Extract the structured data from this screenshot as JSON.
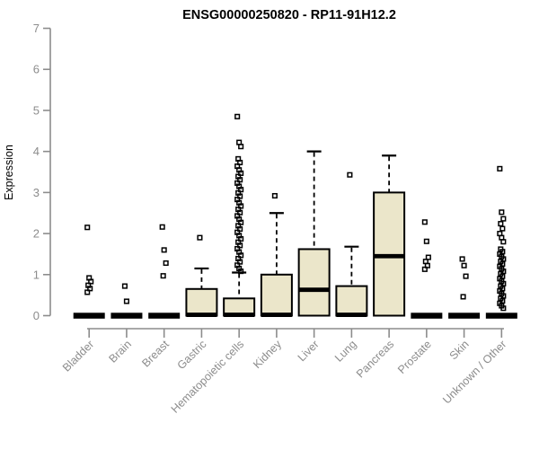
{
  "chart_data": {
    "type": "boxplot",
    "title": "ENSG00000250820 - RP11-91H12.2",
    "ylabel": "Expression",
    "xlabel": "",
    "ylim": [
      0,
      7
    ],
    "yticks": [
      0,
      1,
      2,
      3,
      4,
      5,
      6,
      7
    ],
    "grid": false,
    "legend": false,
    "colors": {
      "box_fill": "#EBE6CA",
      "box_stroke": "#000000",
      "median": "#000000",
      "whisker": "#000000",
      "outlier": "#000000",
      "axis": "#8C8C8C",
      "text": "#8C8C8C",
      "title": "#000000",
      "background": "#FFFFFF"
    },
    "categories": [
      "Bladder",
      "Brain",
      "Breast",
      "Gastric",
      "Hematopoietic cells",
      "Kidney",
      "Liver",
      "Lung",
      "Pancreas",
      "Prostate",
      "Skin",
      "Unknown / Other"
    ],
    "series": [
      {
        "name": "Bladder",
        "q1": 0,
        "median": 0,
        "q3": 0,
        "whisker_low": 0,
        "whisker_high": 0,
        "outliers": [
          2.15,
          0.92,
          0.83,
          0.74,
          0.66,
          0.57
        ]
      },
      {
        "name": "Brain",
        "q1": 0,
        "median": 0,
        "q3": 0,
        "whisker_low": 0,
        "whisker_high": 0,
        "outliers": [
          0.72,
          0.35
        ]
      },
      {
        "name": "Breast",
        "q1": 0,
        "median": 0,
        "q3": 0,
        "whisker_low": 0,
        "whisker_high": 0,
        "outliers": [
          2.16,
          1.6,
          1.28,
          0.97
        ]
      },
      {
        "name": "Gastric",
        "q1": 0,
        "median": 0.02,
        "q3": 0.65,
        "whisker_low": 0,
        "whisker_high": 1.15,
        "outliers": [
          1.9
        ]
      },
      {
        "name": "Hematopoietic cells",
        "q1": 0,
        "median": 0.02,
        "q3": 0.42,
        "whisker_low": 0,
        "whisker_high": 1.05,
        "outliers": [
          4.85,
          4.22,
          4.12,
          3.82,
          3.73,
          3.64,
          3.55,
          3.47,
          3.39,
          3.31,
          3.23,
          3.15,
          3.07,
          2.99,
          2.91,
          2.83,
          2.75,
          2.67,
          2.59,
          2.51,
          2.43,
          2.35,
          2.27,
          2.19,
          2.11,
          2.03,
          1.95,
          1.87,
          1.79,
          1.71,
          1.63,
          1.55,
          1.47,
          1.39,
          1.31,
          1.23,
          1.15,
          1.08
        ]
      },
      {
        "name": "Kidney",
        "q1": 0,
        "median": 0.02,
        "q3": 1.0,
        "whisker_low": 0,
        "whisker_high": 2.5,
        "outliers": [
          2.92
        ]
      },
      {
        "name": "Liver",
        "q1": 0,
        "median": 0.63,
        "q3": 1.62,
        "whisker_low": 0,
        "whisker_high": 4.0,
        "outliers": []
      },
      {
        "name": "Lung",
        "q1": 0,
        "median": 0.02,
        "q3": 0.72,
        "whisker_low": 0,
        "whisker_high": 1.68,
        "outliers": [
          3.43
        ]
      },
      {
        "name": "Pancreas",
        "q1": 0,
        "median": 1.45,
        "q3": 3.0,
        "whisker_low": 0,
        "whisker_high": 3.9,
        "outliers": []
      },
      {
        "name": "Prostate",
        "q1": 0,
        "median": 0,
        "q3": 0,
        "whisker_low": 0,
        "whisker_high": 0,
        "outliers": [
          2.28,
          1.81,
          1.42,
          1.32,
          1.22,
          1.13
        ]
      },
      {
        "name": "Skin",
        "q1": 0,
        "median": 0,
        "q3": 0,
        "whisker_low": 0,
        "whisker_high": 0,
        "outliers": [
          1.38,
          1.22,
          0.96,
          0.46
        ]
      },
      {
        "name": "Unknown / Other",
        "q1": 0,
        "median": 0,
        "q3": 0,
        "whisker_low": 0,
        "whisker_high": 0,
        "outliers": [
          3.58,
          2.52,
          2.36,
          2.24,
          2.12,
          2.0,
          1.9,
          1.8,
          1.62,
          1.56,
          1.5,
          1.44,
          1.38,
          1.32,
          1.26,
          1.2,
          1.14,
          1.08,
          1.02,
          0.96,
          0.9,
          0.84,
          0.78,
          0.72,
          0.66,
          0.6,
          0.54,
          0.48,
          0.42,
          0.36,
          0.3,
          0.24,
          0.18
        ]
      }
    ]
  }
}
